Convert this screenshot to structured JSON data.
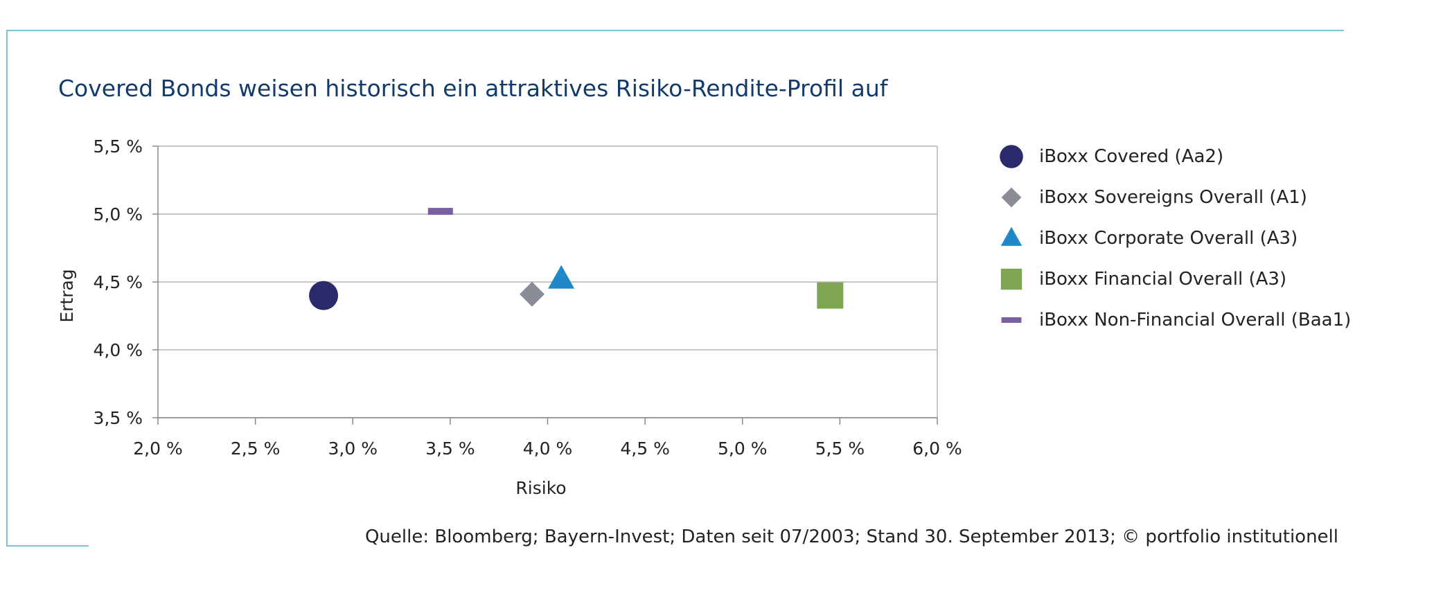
{
  "title": "Covered Bonds weisen historisch ein attraktives Risiko-Rendite-Profil auf",
  "source": "Quelle: Bloomberg; Bayern-Invest; Daten seit 07/2003; Stand 30. September 2013; © portfolio institutionell",
  "chart_data": {
    "type": "scatter",
    "xlabel": "Risiko",
    "ylabel": "Ertrag",
    "xlim": [
      2.0,
      6.0
    ],
    "ylim": [
      3.5,
      5.5
    ],
    "x_ticks": [
      2.0,
      2.5,
      3.0,
      3.5,
      4.0,
      4.5,
      5.0,
      5.5,
      6.0
    ],
    "x_tick_labels": [
      "2,0 %",
      "2,5 %",
      "3,0 %",
      "3,5 %",
      "4,0 %",
      "4,5 %",
      "5,0 %",
      "5,5 %",
      "6,0 %"
    ],
    "y_ticks": [
      3.5,
      4.0,
      4.5,
      5.0,
      5.5
    ],
    "y_tick_labels": [
      "3,5 %",
      "4,0 %",
      "4,5 %",
      "5,0 %",
      "5,5 %"
    ],
    "grid": "horizontal",
    "legend_position": "right",
    "series": [
      {
        "name": "iBoxx Covered (Aa2)",
        "x": 2.85,
        "y": 4.4,
        "marker": "circle",
        "color": "#2b2a6b"
      },
      {
        "name": "iBoxx Sovereigns Overall (A1)",
        "x": 3.92,
        "y": 4.41,
        "marker": "diamond",
        "color": "#8a8d96"
      },
      {
        "name": "iBoxx Corporate Overall (A3)",
        "x": 4.07,
        "y": 4.52,
        "marker": "triangle",
        "color": "#1e88c8"
      },
      {
        "name": "iBoxx Financial Overall (A3)",
        "x": 5.45,
        "y": 4.4,
        "marker": "square",
        "color": "#7ea553"
      },
      {
        "name": "iBoxx Non-Financial Overall (Baa1)",
        "x": 3.45,
        "y": 5.02,
        "marker": "dash",
        "color": "#7b5fa3"
      }
    ]
  }
}
